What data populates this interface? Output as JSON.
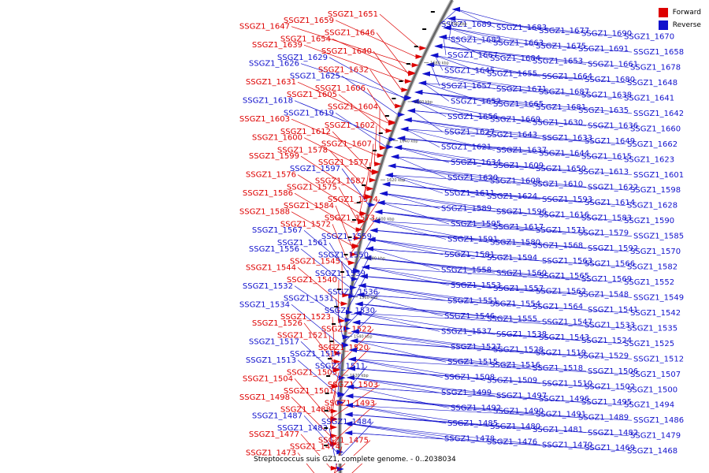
{
  "legend": {
    "forward_label": "Forward",
    "reverse_label": "Reverse",
    "forward_color": "#dd0000",
    "reverse_color": "#1111cc"
  },
  "caption": "Streptococcus suis GZ1, complete genome. - 0..2038034",
  "ticks": [
    {
      "label": "1700 kbp",
      "bp": 1700000
    },
    {
      "label": "1680 kbp",
      "bp": 1680000
    },
    {
      "label": "1660 kbp",
      "bp": 1660000
    },
    {
      "label": "1640 kbp",
      "bp": 1640000
    },
    {
      "label": "1620 kbp",
      "bp": 1620000
    },
    {
      "label": "1600 kbp",
      "bp": 1600000
    },
    {
      "label": "1580 kbp",
      "bp": 1580000
    },
    {
      "label": "1560 kbp",
      "bp": 1560000
    },
    {
      "label": "1540 kbp",
      "bp": 1540000
    },
    {
      "label": "1520 kbp",
      "bp": 1520000
    }
  ],
  "genes": [
    {
      "name": "SSGZ1_1651",
      "strand": "forward"
    },
    {
      "name": "SSGZ1_1659",
      "strand": "forward"
    },
    {
      "name": "SSGZ1_1647",
      "strand": "forward"
    },
    {
      "name": "SSGZ1_1646",
      "strand": "forward"
    },
    {
      "name": "SSGZ1_1654",
      "strand": "forward"
    },
    {
      "name": "SSGZ1_1639",
      "strand": "forward"
    },
    {
      "name": "SSGZ1_1640",
      "strand": "forward"
    },
    {
      "name": "SSGZ1_1629",
      "strand": "reverse"
    },
    {
      "name": "SSGZ1_1626",
      "strand": "reverse"
    },
    {
      "name": "SSGZ1_1632",
      "strand": "forward"
    },
    {
      "name": "SSGZ1_1625",
      "strand": "reverse"
    },
    {
      "name": "SSGZ1_1631",
      "strand": "forward"
    },
    {
      "name": "SSGZ1_1606",
      "strand": "forward"
    },
    {
      "name": "SSGZ1_1605",
      "strand": "forward"
    },
    {
      "name": "SSGZ1_1618",
      "strand": "reverse"
    },
    {
      "name": "SSGZ1_1604",
      "strand": "forward"
    },
    {
      "name": "SSGZ1_1619",
      "strand": "reverse"
    },
    {
      "name": "SSGZ1_1603",
      "strand": "forward"
    },
    {
      "name": "SSGZ1_1602",
      "strand": "forward"
    },
    {
      "name": "SSGZ1_1612",
      "strand": "forward"
    },
    {
      "name": "SSGZ1_1600",
      "strand": "forward"
    },
    {
      "name": "SSGZ1_1607",
      "strand": "forward"
    },
    {
      "name": "SSGZ1_1578",
      "strand": "forward"
    },
    {
      "name": "SSGZ1_1599",
      "strand": "forward"
    },
    {
      "name": "SSGZ1_1577",
      "strand": "forward"
    },
    {
      "name": "SSGZ1_1597",
      "strand": "reverse"
    },
    {
      "name": "SSGZ1_1576",
      "strand": "forward"
    },
    {
      "name": "SSGZ1_1587",
      "strand": "forward"
    },
    {
      "name": "SSGZ1_1575",
      "strand": "forward"
    },
    {
      "name": "SSGZ1_1586",
      "strand": "forward"
    },
    {
      "name": "SSGZ1_1574",
      "strand": "forward"
    },
    {
      "name": "SSGZ1_1584",
      "strand": "forward"
    },
    {
      "name": "SSGZ1_1588",
      "strand": "forward"
    },
    {
      "name": "SSGZ1_1573",
      "strand": "forward"
    },
    {
      "name": "SSGZ1_1572",
      "strand": "forward"
    },
    {
      "name": "SSGZ1_1567",
      "strand": "reverse"
    },
    {
      "name": "SSGZ1_1559",
      "strand": "reverse"
    },
    {
      "name": "SSGZ1_1561",
      "strand": "reverse"
    },
    {
      "name": "SSGZ1_1556",
      "strand": "reverse"
    },
    {
      "name": "SSGZ1_1550",
      "strand": "reverse"
    },
    {
      "name": "SSGZ1_1545",
      "strand": "forward"
    },
    {
      "name": "SSGZ1_1544",
      "strand": "forward"
    },
    {
      "name": "SSGZ1_1539",
      "strand": "reverse"
    },
    {
      "name": "SSGZ1_1540",
      "strand": "forward"
    },
    {
      "name": "SSGZ1_1532",
      "strand": "reverse"
    },
    {
      "name": "SSGZ1_1536",
      "strand": "reverse"
    },
    {
      "name": "SSGZ1_1531",
      "strand": "reverse"
    },
    {
      "name": "SSGZ1_1534",
      "strand": "reverse"
    },
    {
      "name": "SSGZ1_1530",
      "strand": "reverse"
    },
    {
      "name": "SSGZ1_1523",
      "strand": "forward"
    },
    {
      "name": "SSGZ1_1526",
      "strand": "forward"
    },
    {
      "name": "SSGZ1_1522",
      "strand": "forward"
    },
    {
      "name": "SSGZ1_1521",
      "strand": "forward"
    },
    {
      "name": "SSGZ1_1517",
      "strand": "reverse"
    },
    {
      "name": "SSGZ1_1520",
      "strand": "forward"
    },
    {
      "name": "SSGZ1_1514",
      "strand": "reverse"
    },
    {
      "name": "SSGZ1_1513",
      "strand": "reverse"
    },
    {
      "name": "SSGZ1_1511",
      "strand": "reverse"
    },
    {
      "name": "SSGZ1_1505",
      "strand": "forward"
    },
    {
      "name": "SSGZ1_1504",
      "strand": "forward"
    },
    {
      "name": "SSGZ1_1503",
      "strand": "forward"
    },
    {
      "name": "SSGZ1_1501",
      "strand": "forward"
    },
    {
      "name": "SSGZ1_1498",
      "strand": "forward"
    },
    {
      "name": "SSGZ1_1493",
      "strand": "forward"
    },
    {
      "name": "SSGZ1_1488",
      "strand": "forward"
    },
    {
      "name": "SSGZ1_1487",
      "strand": "reverse"
    },
    {
      "name": "SSGZ1_1484",
      "strand": "reverse"
    },
    {
      "name": "SSGZ1_1483",
      "strand": "reverse"
    },
    {
      "name": "SSGZ1_1477",
      "strand": "forward"
    },
    {
      "name": "SSGZ1_1475",
      "strand": "forward"
    },
    {
      "name": "SSGZ1_1474",
      "strand": "forward"
    },
    {
      "name": "SSGZ1_1473",
      "strand": "forward"
    },
    {
      "name": "SSGZ1_1472",
      "strand": "forward"
    },
    {
      "name": "SSGZ1_1689",
      "strand": "reverse"
    },
    {
      "name": "SSGZ1_1683",
      "strand": "reverse"
    },
    {
      "name": "SSGZ1_1677",
      "strand": "reverse"
    },
    {
      "name": "SSGZ1_1690",
      "strand": "reverse"
    },
    {
      "name": "SSGZ1_1670",
      "strand": "reverse"
    },
    {
      "name": "SSGZ1_1682",
      "strand": "reverse"
    },
    {
      "name": "SSGZ1_1663",
      "strand": "reverse"
    },
    {
      "name": "SSGZ1_1675",
      "strand": "reverse"
    },
    {
      "name": "SSGZ1_1691",
      "strand": "reverse"
    },
    {
      "name": "SSGZ1_1658",
      "strand": "reverse"
    },
    {
      "name": "SSGZ1_1667",
      "strand": "reverse"
    },
    {
      "name": "SSGZ1_1684",
      "strand": "reverse"
    },
    {
      "name": "SSGZ1_1653",
      "strand": "reverse"
    },
    {
      "name": "SSGZ1_1661",
      "strand": "reverse"
    },
    {
      "name": "SSGZ1_1678",
      "strand": "reverse"
    },
    {
      "name": "SSGZ1_1645",
      "strand": "reverse"
    },
    {
      "name": "SSGZ1_1655",
      "strand": "reverse"
    },
    {
      "name": "SSGZ1_1664",
      "strand": "reverse"
    },
    {
      "name": "SSGZ1_1680",
      "strand": "reverse"
    },
    {
      "name": "SSGZ1_1648",
      "strand": "reverse"
    },
    {
      "name": "SSGZ1_1657",
      "strand": "reverse"
    },
    {
      "name": "SSGZ1_1671",
      "strand": "reverse"
    },
    {
      "name": "SSGZ1_1687",
      "strand": "reverse"
    },
    {
      "name": "SSGZ1_1638",
      "strand": "reverse"
    },
    {
      "name": "SSGZ1_1641",
      "strand": "reverse"
    },
    {
      "name": "SSGZ1_1652",
      "strand": "reverse"
    },
    {
      "name": "SSGZ1_1665",
      "strand": "reverse"
    },
    {
      "name": "SSGZ1_1681",
      "strand": "reverse"
    },
    {
      "name": "SSGZ1_1635",
      "strand": "reverse"
    },
    {
      "name": "SSGZ1_1642",
      "strand": "reverse"
    },
    {
      "name": "SSGZ1_1656",
      "strand": "reverse"
    },
    {
      "name": "SSGZ1_1669",
      "strand": "reverse"
    },
    {
      "name": "SSGZ1_1630",
      "strand": "reverse"
    },
    {
      "name": "SSGZ1_1636",
      "strand": "reverse"
    },
    {
      "name": "SSGZ1_1660",
      "strand": "reverse"
    },
    {
      "name": "SSGZ1_1627",
      "strand": "reverse"
    },
    {
      "name": "SSGZ1_1643",
      "strand": "reverse"
    },
    {
      "name": "SSGZ1_1633",
      "strand": "reverse"
    },
    {
      "name": "SSGZ1_1649",
      "strand": "reverse"
    },
    {
      "name": "SSGZ1_1662",
      "strand": "reverse"
    },
    {
      "name": "SSGZ1_1621",
      "strand": "reverse"
    },
    {
      "name": "SSGZ1_1637",
      "strand": "reverse"
    },
    {
      "name": "SSGZ1_1644",
      "strand": "reverse"
    },
    {
      "name": "SSGZ1_1615",
      "strand": "reverse"
    },
    {
      "name": "SSGZ1_1623",
      "strand": "reverse"
    },
    {
      "name": "SSGZ1_1634",
      "strand": "reverse"
    },
    {
      "name": "SSGZ1_1609",
      "strand": "reverse"
    },
    {
      "name": "SSGZ1_1650",
      "strand": "reverse"
    },
    {
      "name": "SSGZ1_1613",
      "strand": "reverse"
    },
    {
      "name": "SSGZ1_1601",
      "strand": "reverse"
    },
    {
      "name": "SSGZ1_1620",
      "strand": "reverse"
    },
    {
      "name": "SSGZ1_1608",
      "strand": "reverse"
    },
    {
      "name": "SSGZ1_1610",
      "strand": "reverse"
    },
    {
      "name": "SSGZ1_1622",
      "strand": "reverse"
    },
    {
      "name": "SSGZ1_1598",
      "strand": "reverse"
    },
    {
      "name": "SSGZ1_1611",
      "strand": "reverse"
    },
    {
      "name": "SSGZ1_1624",
      "strand": "reverse"
    },
    {
      "name": "SSGZ1_1593",
      "strand": "reverse"
    },
    {
      "name": "SSGZ1_1614",
      "strand": "reverse"
    },
    {
      "name": "SSGZ1_1628",
      "strand": "reverse"
    },
    {
      "name": "SSGZ1_1589",
      "strand": "reverse"
    },
    {
      "name": "SSGZ1_1596",
      "strand": "reverse"
    },
    {
      "name": "SSGZ1_1616",
      "strand": "reverse"
    },
    {
      "name": "SSGZ1_1583",
      "strand": "reverse"
    },
    {
      "name": "SSGZ1_1590",
      "strand": "reverse"
    },
    {
      "name": "SSGZ1_1595",
      "strand": "reverse"
    },
    {
      "name": "SSGZ1_1617",
      "strand": "reverse"
    },
    {
      "name": "SSGZ1_1571",
      "strand": "reverse"
    },
    {
      "name": "SSGZ1_1579",
      "strand": "reverse"
    },
    {
      "name": "SSGZ1_1585",
      "strand": "reverse"
    },
    {
      "name": "SSGZ1_1591",
      "strand": "reverse"
    },
    {
      "name": "SSGZ1_1580",
      "strand": "reverse"
    },
    {
      "name": "SSGZ1_1568",
      "strand": "reverse"
    },
    {
      "name": "SSGZ1_1592",
      "strand": "reverse"
    },
    {
      "name": "SSGZ1_1570",
      "strand": "reverse"
    },
    {
      "name": "SSGZ1_1581",
      "strand": "reverse"
    },
    {
      "name": "SSGZ1_1594",
      "strand": "reverse"
    },
    {
      "name": "SSGZ1_1563",
      "strand": "reverse"
    },
    {
      "name": "SSGZ1_1566",
      "strand": "reverse"
    },
    {
      "name": "SSGZ1_1582",
      "strand": "reverse"
    },
    {
      "name": "SSGZ1_1558",
      "strand": "reverse"
    },
    {
      "name": "SSGZ1_1560",
      "strand": "reverse"
    },
    {
      "name": "SSGZ1_1565",
      "strand": "reverse"
    },
    {
      "name": "SSGZ1_1569",
      "strand": "reverse"
    },
    {
      "name": "SSGZ1_1552",
      "strand": "reverse"
    },
    {
      "name": "SSGZ1_1553",
      "strand": "reverse"
    },
    {
      "name": "SSGZ1_1557",
      "strand": "reverse"
    },
    {
      "name": "SSGZ1_1562",
      "strand": "reverse"
    },
    {
      "name": "SSGZ1_1548",
      "strand": "reverse"
    },
    {
      "name": "SSGZ1_1549",
      "strand": "reverse"
    },
    {
      "name": "SSGZ1_1551",
      "strand": "reverse"
    },
    {
      "name": "SSGZ1_1554",
      "strand": "reverse"
    },
    {
      "name": "SSGZ1_1564",
      "strand": "reverse"
    },
    {
      "name": "SSGZ1_1541",
      "strand": "reverse"
    },
    {
      "name": "SSGZ1_1542",
      "strand": "reverse"
    },
    {
      "name": "SSGZ1_1546",
      "strand": "reverse"
    },
    {
      "name": "SSGZ1_1555",
      "strand": "reverse"
    },
    {
      "name": "SSGZ1_1547",
      "strand": "reverse"
    },
    {
      "name": "SSGZ1_1533",
      "strand": "reverse"
    },
    {
      "name": "SSGZ1_1535",
      "strand": "reverse"
    },
    {
      "name": "SSGZ1_1537",
      "strand": "reverse"
    },
    {
      "name": "SSGZ1_1538",
      "strand": "reverse"
    },
    {
      "name": "SSGZ1_1543",
      "strand": "reverse"
    },
    {
      "name": "SSGZ1_1524",
      "strand": "reverse"
    },
    {
      "name": "SSGZ1_1525",
      "strand": "reverse"
    },
    {
      "name": "SSGZ1_1527",
      "strand": "reverse"
    },
    {
      "name": "SSGZ1_1528",
      "strand": "reverse"
    },
    {
      "name": "SSGZ1_1519",
      "strand": "reverse"
    },
    {
      "name": "SSGZ1_1529",
      "strand": "reverse"
    },
    {
      "name": "SSGZ1_1512",
      "strand": "reverse"
    },
    {
      "name": "SSGZ1_1515",
      "strand": "reverse"
    },
    {
      "name": "SSGZ1_1516",
      "strand": "reverse"
    },
    {
      "name": "SSGZ1_1518",
      "strand": "reverse"
    },
    {
      "name": "SSGZ1_1506",
      "strand": "reverse"
    },
    {
      "name": "SSGZ1_1507",
      "strand": "reverse"
    },
    {
      "name": "SSGZ1_1508",
      "strand": "reverse"
    },
    {
      "name": "SSGZ1_1509",
      "strand": "reverse"
    },
    {
      "name": "SSGZ1_1510",
      "strand": "reverse"
    },
    {
      "name": "SSGZ1_1502",
      "strand": "reverse"
    },
    {
      "name": "SSGZ1_1500",
      "strand": "reverse"
    },
    {
      "name": "SSGZ1_1499",
      "strand": "reverse"
    },
    {
      "name": "SSGZ1_1497",
      "strand": "reverse"
    },
    {
      "name": "SSGZ1_1496",
      "strand": "reverse"
    },
    {
      "name": "SSGZ1_1495",
      "strand": "reverse"
    },
    {
      "name": "SSGZ1_1494",
      "strand": "reverse"
    },
    {
      "name": "SSGZ1_1492",
      "strand": "reverse"
    },
    {
      "name": "SSGZ1_1490",
      "strand": "reverse"
    },
    {
      "name": "SSGZ1_1491",
      "strand": "reverse"
    },
    {
      "name": "SSGZ1_1489",
      "strand": "reverse"
    },
    {
      "name": "SSGZ1_1486",
      "strand": "reverse"
    },
    {
      "name": "SSGZ1_1485",
      "strand": "reverse"
    },
    {
      "name": "SSGZ1_1480",
      "strand": "reverse"
    },
    {
      "name": "SSGZ1_1481",
      "strand": "reverse"
    },
    {
      "name": "SSGZ1_1482",
      "strand": "reverse"
    },
    {
      "name": "SSGZ1_1479",
      "strand": "reverse"
    },
    {
      "name": "SSGZ1_1478",
      "strand": "reverse"
    },
    {
      "name": "SSGZ1_1476",
      "strand": "reverse"
    },
    {
      "name": "SSGZ1_1470",
      "strand": "reverse"
    },
    {
      "name": "SSGZ1_1469",
      "strand": "reverse"
    },
    {
      "name": "SSGZ1_1468",
      "strand": "reverse"
    }
  ]
}
